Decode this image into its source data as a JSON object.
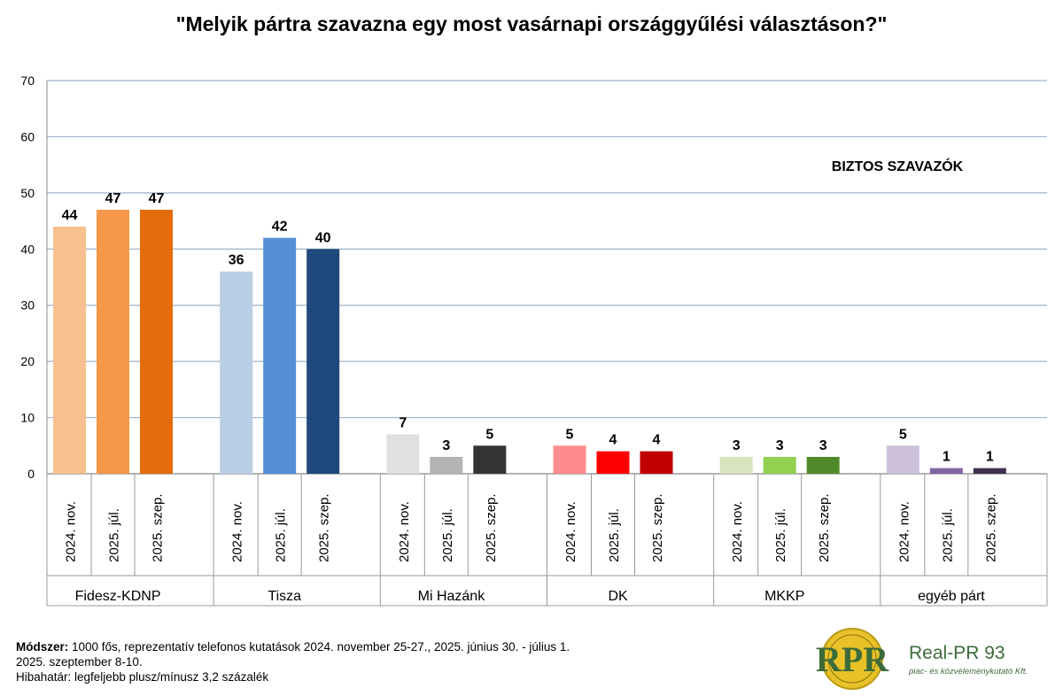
{
  "title": "\"Melyik pártra szavazna egy most vasárnapi országgyűlési választáson?\"",
  "badge": "BIZTOS SZAVAZÓK",
  "footer": {
    "method_label": "Módszer:",
    "method_text": " 1000 fős, reprezentatív telefonos kutatások 2024. november 25-27., 2025. június 30. - július 1.",
    "line2": "2025. szeptember 8-10.",
    "line3": "Hibahatár: legfeljebb plusz/mínusz 3,2 százalék"
  },
  "logo": {
    "mark": "RPR",
    "name": "Real-PR 93",
    "sub": "piac- és közvéleménykutató Kft."
  },
  "chart_data": {
    "type": "bar",
    "ylim": [
      0,
      70
    ],
    "yticks": [
      0,
      10,
      20,
      30,
      40,
      50,
      60,
      70
    ],
    "grid": true,
    "periods": [
      "2024. nov.",
      "2025. júl.",
      "2025. szep."
    ],
    "groups": [
      {
        "name": "Fidesz-KDNP",
        "values": [
          44,
          47,
          47
        ],
        "colors": [
          "#f8c08e",
          "#f5984a",
          "#e46c0a"
        ]
      },
      {
        "name": "Tisza",
        "values": [
          36,
          42,
          40
        ],
        "colors": [
          "#b9cde5",
          "#558ed5",
          "#1f497d"
        ]
      },
      {
        "name": "Mi Hazánk",
        "values": [
          7,
          3,
          5
        ],
        "colors": [
          "#e0e0e0",
          "#b3b3b3",
          "#333333"
        ]
      },
      {
        "name": "DK",
        "values": [
          5,
          4,
          4
        ],
        "colors": [
          "#ff8c8c",
          "#ff0000",
          "#c00000"
        ]
      },
      {
        "name": "MKKP",
        "values": [
          3,
          3,
          3
        ],
        "colors": [
          "#d7e4bd",
          "#92d050",
          "#4f8a2a"
        ]
      },
      {
        "name": "egyéb párt",
        "values": [
          5,
          1,
          1
        ],
        "colors": [
          "#ccc0da",
          "#8064a2",
          "#403151"
        ]
      }
    ]
  }
}
